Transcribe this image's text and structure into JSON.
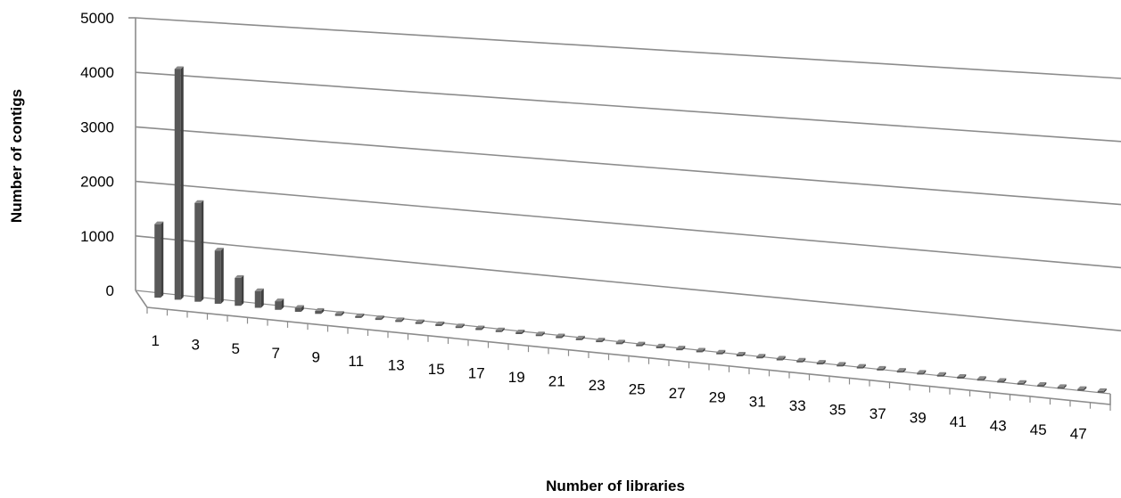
{
  "chart_data": {
    "type": "bar",
    "style": "3d-perspective",
    "title": "",
    "xlabel": "Number of libraries",
    "ylabel": "Number of contigs",
    "ylim": [
      0,
      5000
    ],
    "yticks": [
      "0",
      "1000",
      "2000",
      "3000",
      "4000",
      "5000"
    ],
    "xtick_labels": [
      "1",
      "3",
      "5",
      "7",
      "9",
      "11",
      "13",
      "15",
      "17",
      "19",
      "21",
      "23",
      "25",
      "27",
      "29",
      "31",
      "33",
      "35",
      "37",
      "39",
      "41",
      "43",
      "45",
      "47"
    ],
    "categories": [
      1,
      2,
      3,
      4,
      5,
      6,
      7,
      8,
      9,
      10,
      11,
      12,
      13,
      14,
      15,
      16,
      17,
      18,
      19,
      20,
      21,
      22,
      23,
      24,
      25,
      26,
      27,
      28,
      29,
      30,
      31,
      32,
      33,
      34,
      35,
      36,
      37,
      38,
      39,
      40,
      41,
      42,
      43,
      44,
      45,
      46,
      47,
      48
    ],
    "values": [
      1450,
      4550,
      1950,
      1050,
      550,
      330,
      170,
      80,
      60,
      40,
      30,
      20,
      15,
      12,
      10,
      8,
      6,
      5,
      5,
      4,
      3,
      3,
      2,
      2,
      2,
      2,
      1,
      1,
      1,
      1,
      1,
      1,
      1,
      1,
      1,
      1,
      1,
      1,
      1,
      1,
      1,
      1,
      1,
      1,
      1,
      1,
      1,
      1
    ],
    "grid": true,
    "legend": "none",
    "colors": {
      "bar": "#595959",
      "grid": "#8c8c8c",
      "axis": "#8c8c8c"
    }
  }
}
